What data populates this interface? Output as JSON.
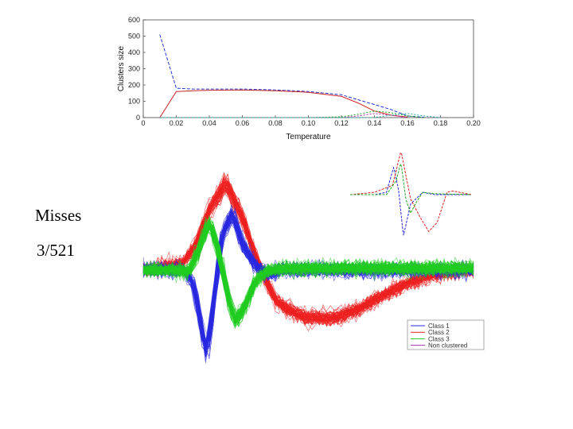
{
  "annotations": {
    "misses_label": "Misses",
    "misses_value": "3/521"
  },
  "chart_data": [
    {
      "type": "line",
      "xlabel": "Temperature",
      "ylabel": "Clusters size",
      "xlim": [
        0,
        0.2
      ],
      "ylim": [
        0,
        600
      ],
      "xticks": [
        "0",
        "0.02",
        "0.04",
        "0.06",
        "0.08",
        "0.10",
        "0.12",
        "0.14",
        "0.16",
        "0.18",
        "0.20"
      ],
      "yticks": [
        "0",
        "100",
        "200",
        "300",
        "400",
        "500",
        "600"
      ],
      "grid": false,
      "series": [
        {
          "color": "#2233cc",
          "x": [
            0.01,
            0.02,
            0.03,
            0.04,
            0.06,
            0.08,
            0.1,
            0.12,
            0.14,
            0.15,
            0.16,
            0.17
          ],
          "y": [
            510,
            180,
            175,
            175,
            175,
            170,
            160,
            140,
            80,
            50,
            10,
            2
          ]
        },
        {
          "color": "#cc2222",
          "x": [
            0.01,
            0.02,
            0.03,
            0.04,
            0.06,
            0.08,
            0.1,
            0.12,
            0.13,
            0.14,
            0.15,
            0.16
          ],
          "y": [
            0,
            160,
            165,
            168,
            170,
            165,
            155,
            130,
            90,
            40,
            15,
            3
          ]
        },
        {
          "color": "#22aa22",
          "x": [
            0.01,
            0.1,
            0.12,
            0.13,
            0.14,
            0.15,
            0.16,
            0.17
          ],
          "y": [
            0,
            0,
            5,
            20,
            40,
            30,
            10,
            0
          ]
        },
        {
          "color": "#aa22aa",
          "x": [
            0.01,
            0.12,
            0.13,
            0.14,
            0.15,
            0.16
          ],
          "y": [
            0,
            0,
            10,
            25,
            15,
            0
          ]
        },
        {
          "color": "#22aaaa",
          "x": [
            0.01,
            0.14,
            0.15,
            0.16,
            0.17,
            0.18
          ],
          "y": [
            0,
            0,
            15,
            25,
            10,
            0
          ]
        }
      ]
    },
    {
      "type": "line",
      "xlabel": "",
      "ylabel": "",
      "series": [
        {
          "color": "#2a2ae0",
          "x": [
            0,
            0.08,
            0.12,
            0.15,
            0.17,
            0.19,
            0.2,
            0.22,
            0.24,
            0.27,
            0.3,
            0.34,
            0.38,
            0.42,
            0.5,
            1
          ],
          "y": [
            0,
            0,
            0,
            -0.12,
            -0.5,
            -0.95,
            -0.75,
            -0.15,
            0.4,
            0.65,
            0.3,
            0.05,
            -0.05,
            0,
            0,
            0
          ]
        },
        {
          "color": "#ee2020",
          "x": [
            0,
            0.12,
            0.16,
            0.2,
            0.25,
            0.3,
            0.35,
            0.4,
            0.45,
            0.5,
            0.58,
            0.65,
            0.72,
            0.8,
            0.88,
            1
          ],
          "y": [
            0,
            0.08,
            0.3,
            0.7,
            1.0,
            0.6,
            0.05,
            -0.35,
            -0.48,
            -0.55,
            -0.55,
            -0.45,
            -0.3,
            -0.15,
            -0.05,
            0
          ]
        },
        {
          "color": "#22cc22",
          "x": [
            0,
            0.1,
            0.14,
            0.17,
            0.2,
            0.23,
            0.26,
            0.28,
            0.31,
            0.34,
            0.38,
            0.45,
            0.55,
            0.7,
            1
          ],
          "y": [
            0,
            0,
            -0.02,
            0.25,
            0.55,
            0.2,
            -0.35,
            -0.6,
            -0.4,
            -0.12,
            0,
            0.02,
            0.02,
            0.02,
            0.02
          ]
        }
      ],
      "legend": {
        "placement": "bottom-right",
        "entries": [
          {
            "label": "Class 1",
            "color": "#2a2ae0"
          },
          {
            "label": "Class 2",
            "color": "#ee2020"
          },
          {
            "label": "Class 3",
            "color": "#22cc22"
          },
          {
            "label": "Non clustered",
            "color": "#aa33aa"
          }
        ]
      }
    },
    {
      "type": "line",
      "inset": true,
      "series": [
        {
          "color": "#2222dd",
          "x": [
            0,
            0.2,
            0.3,
            0.36,
            0.4,
            0.44,
            0.5,
            0.6,
            0.7,
            1
          ],
          "y": [
            0,
            0,
            0.05,
            0.6,
            0.1,
            -0.9,
            -0.2,
            0.05,
            0,
            0
          ]
        },
        {
          "color": "#dd2222",
          "x": [
            0,
            0.2,
            0.35,
            0.42,
            0.5,
            0.58,
            0.65,
            0.72,
            0.8,
            0.85,
            1
          ],
          "y": [
            0,
            0.05,
            0.2,
            0.95,
            -0.1,
            -0.5,
            -0.8,
            -0.6,
            0.05,
            0.08,
            0
          ]
        },
        {
          "color": "#22aa22",
          "x": [
            0,
            0.3,
            0.38,
            0.42,
            0.46,
            0.5,
            0.55,
            0.6,
            0.7,
            1
          ],
          "y": [
            0,
            0,
            0.3,
            0.7,
            -0.1,
            -0.4,
            -0.15,
            0.05,
            0.02,
            0
          ]
        }
      ]
    }
  ]
}
